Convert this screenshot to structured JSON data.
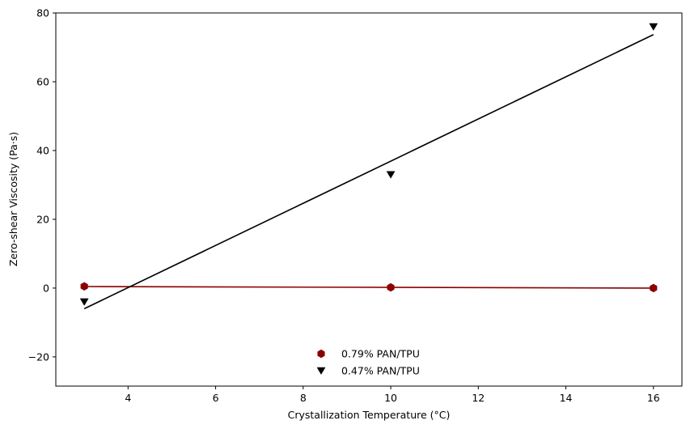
{
  "chart_data": {
    "type": "scatter",
    "xlabel": "Crystallization Temperature (°C)",
    "ylabel": "Zero-shear Viscosity (Pa·s)",
    "xlim": [
      2.35,
      16.65
    ],
    "ylim": [
      -28.5,
      80
    ],
    "xticks": [
      4,
      6,
      8,
      10,
      12,
      14,
      16
    ],
    "yticks": [
      -20,
      0,
      20,
      40,
      60,
      80
    ],
    "ytick_labels": [
      "−20",
      "0",
      "20",
      "40",
      "60",
      "80"
    ],
    "grid": false,
    "legend_position": "bottom-center",
    "series": [
      {
        "name": "0.79% PAN/TPU",
        "marker": "hexagon",
        "color": "#8b0000",
        "x": [
          3,
          10,
          16
        ],
        "y": [
          0.5,
          0.2,
          0.0
        ],
        "fit": [
          [
            3,
            0.45
          ],
          [
            16,
            0.0
          ]
        ]
      },
      {
        "name": "0.47% PAN/TPU",
        "marker": "triangle-down",
        "color": "#000000",
        "x": [
          3,
          10,
          16
        ],
        "y": [
          -4.0,
          33.0,
          76.0
        ],
        "fit": [
          [
            3,
            -6.0
          ],
          [
            16,
            73.7
          ]
        ]
      }
    ]
  }
}
